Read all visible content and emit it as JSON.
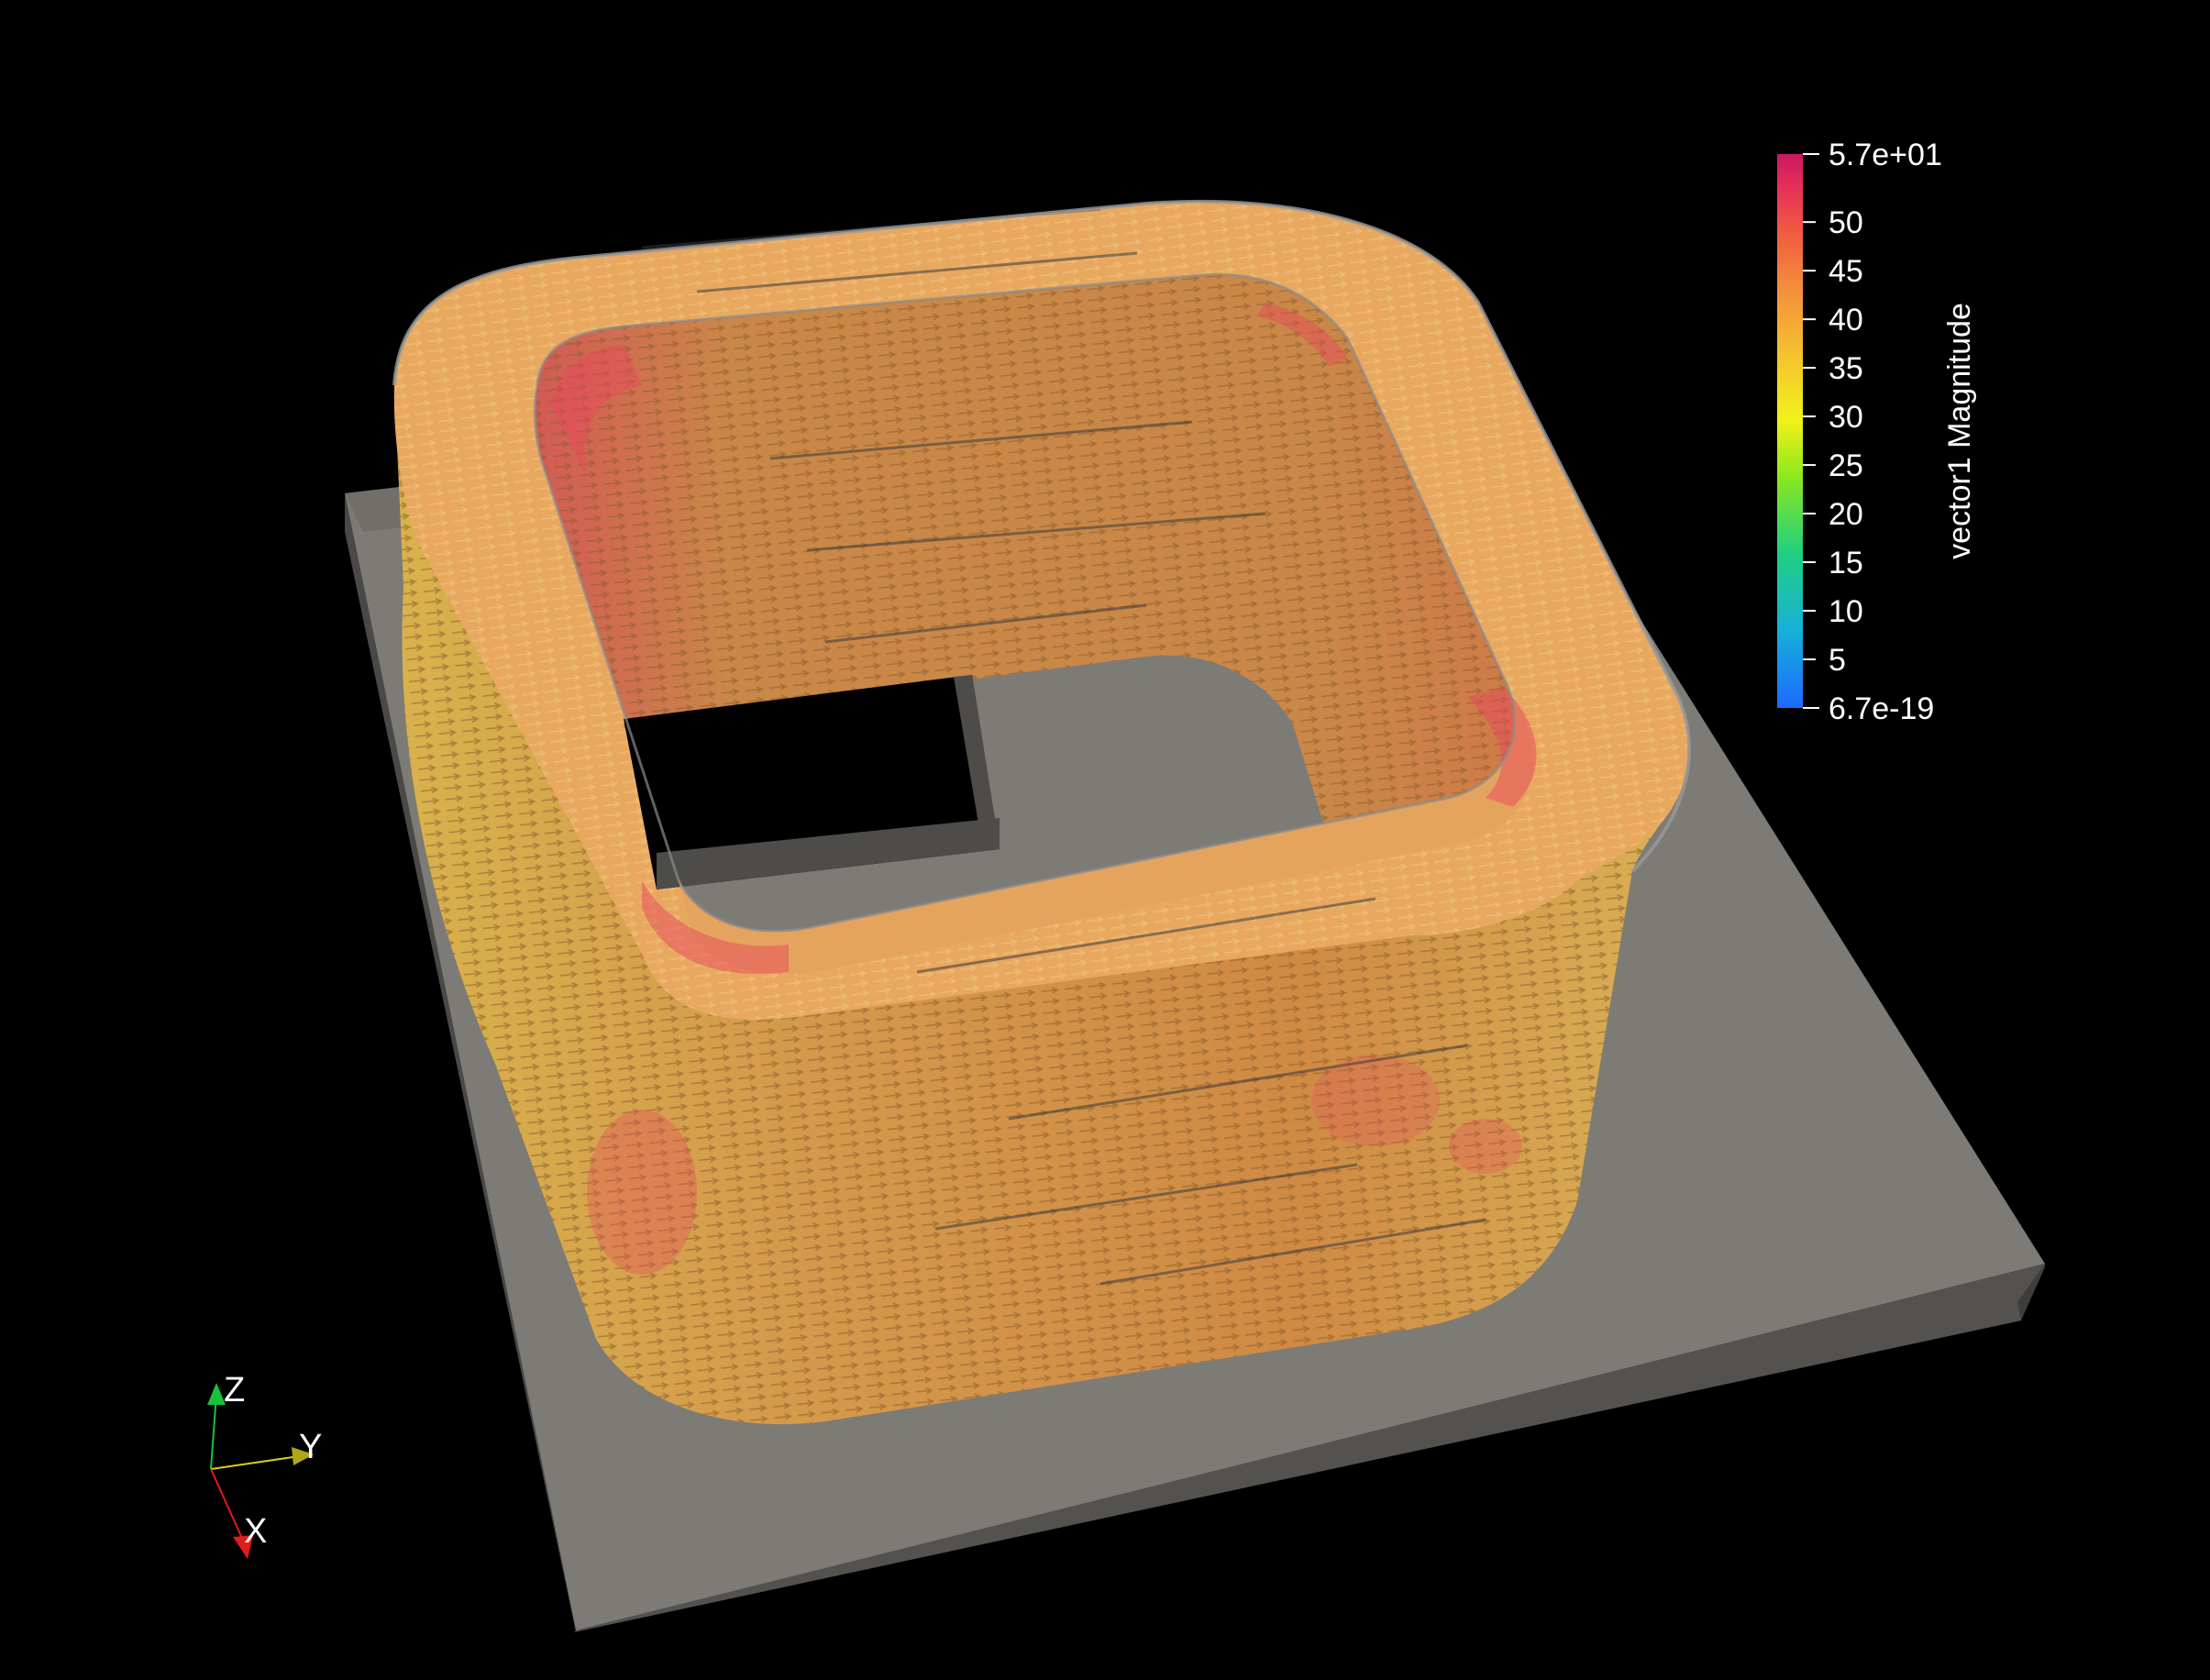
{
  "colorbar": {
    "title": "vector1 Magnitude",
    "max_label": "5.7e+01",
    "min_label": "6.7e-19",
    "range": [
      6.7e-19,
      57
    ],
    "ticks": [
      {
        "value": 50,
        "label": "50"
      },
      {
        "value": 45,
        "label": "45"
      },
      {
        "value": 40,
        "label": "40"
      },
      {
        "value": 35,
        "label": "35"
      },
      {
        "value": 30,
        "label": "30"
      },
      {
        "value": 25,
        "label": "25"
      },
      {
        "value": 20,
        "label": "20"
      },
      {
        "value": 15,
        "label": "15"
      },
      {
        "value": 10,
        "label": "10"
      },
      {
        "value": 5,
        "label": "5"
      }
    ],
    "colormap": [
      "#1a6bff",
      "#18b0d8",
      "#1fd080",
      "#8ee81c",
      "#f2f21a",
      "#f6c030",
      "#f4923c",
      "#f05a40",
      "#e6305a",
      "#c81862"
    ]
  },
  "axes": {
    "x_label": "X",
    "y_label": "Y",
    "z_label": "Z",
    "x_color": "#e01c1c",
    "y_color": "#d8d020",
    "z_color": "#19c23a"
  },
  "scene": {
    "background": "#000000",
    "base_plate_color": "#7d7b76",
    "coil_outer_color": "#e3b25a",
    "coil_inner_color": "#c88a44",
    "hot_color": "#e8485e"
  }
}
